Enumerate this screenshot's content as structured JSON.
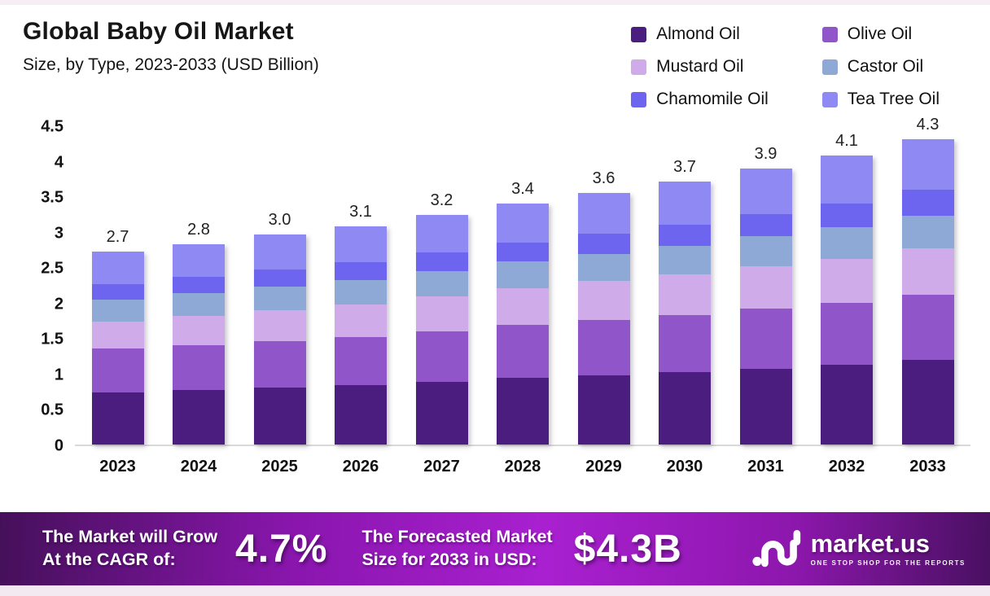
{
  "header": {
    "title": "Global Baby Oil Market",
    "subtitle": "Size, by Type, 2023-2033 (USD Billion)"
  },
  "chart_data": {
    "type": "bar",
    "stacked": true,
    "title": "Global Baby Oil Market",
    "subtitle": "Size, by Type, 2023-2033 (USD Billion)",
    "unit": "USD Billion",
    "grid": false,
    "legend_position": "top-right",
    "categories": [
      "2023",
      "2024",
      "2025",
      "2026",
      "2027",
      "2028",
      "2029",
      "2030",
      "2031",
      "2032",
      "2033"
    ],
    "series": [
      {
        "name": "Almond Oil",
        "color": "#4a1d7e",
        "values": [
          0.74,
          0.77,
          0.8,
          0.84,
          0.89,
          0.94,
          0.98,
          1.02,
          1.07,
          1.12,
          1.2
        ]
      },
      {
        "name": "Olive Oil",
        "color": "#8f55c9",
        "values": [
          0.61,
          0.63,
          0.66,
          0.68,
          0.71,
          0.75,
          0.78,
          0.81,
          0.85,
          0.88,
          0.91
        ]
      },
      {
        "name": "Mustard Oil",
        "color": "#cfabe9",
        "values": [
          0.38,
          0.41,
          0.44,
          0.46,
          0.49,
          0.52,
          0.55,
          0.57,
          0.6,
          0.62,
          0.66
        ]
      },
      {
        "name": "Castor Oil",
        "color": "#8ea9d6",
        "values": [
          0.31,
          0.32,
          0.33,
          0.34,
          0.36,
          0.37,
          0.38,
          0.4,
          0.42,
          0.45,
          0.46
        ]
      },
      {
        "name": "Chamomile Oil",
        "color": "#6d64f0",
        "values": [
          0.22,
          0.23,
          0.24,
          0.25,
          0.26,
          0.27,
          0.28,
          0.3,
          0.31,
          0.33,
          0.36
        ]
      },
      {
        "name": "Tea Tree Oil",
        "color": "#8f89f4",
        "values": [
          0.46,
          0.47,
          0.49,
          0.51,
          0.53,
          0.55,
          0.58,
          0.61,
          0.64,
          0.67,
          0.72
        ]
      }
    ],
    "totals": [
      "2.7",
      "2.8",
      "3.0",
      "3.1",
      "3.2",
      "3.4",
      "3.6",
      "3.7",
      "3.9",
      "4.1",
      "4.3"
    ],
    "ylim": [
      0,
      4.5
    ],
    "yticks": [
      "0",
      "0.5",
      "1",
      "1.5",
      "2",
      "2.5",
      "3",
      "3.5",
      "4",
      "4.5"
    ]
  },
  "footer": {
    "cagr_label_line1": "The Market will Grow",
    "cagr_label_line2": "At the CAGR of:",
    "cagr_value": "4.7%",
    "forecast_label_line1": "The Forecasted Market",
    "forecast_label_line2": "Size for 2033 in USD:",
    "forecast_value": "$4.3B",
    "brand_name": "market.us",
    "brand_tagline": "ONE STOP SHOP FOR THE REPORTS",
    "gradient_colors": [
      "#45105a",
      "#a920d0",
      "#491061"
    ]
  }
}
